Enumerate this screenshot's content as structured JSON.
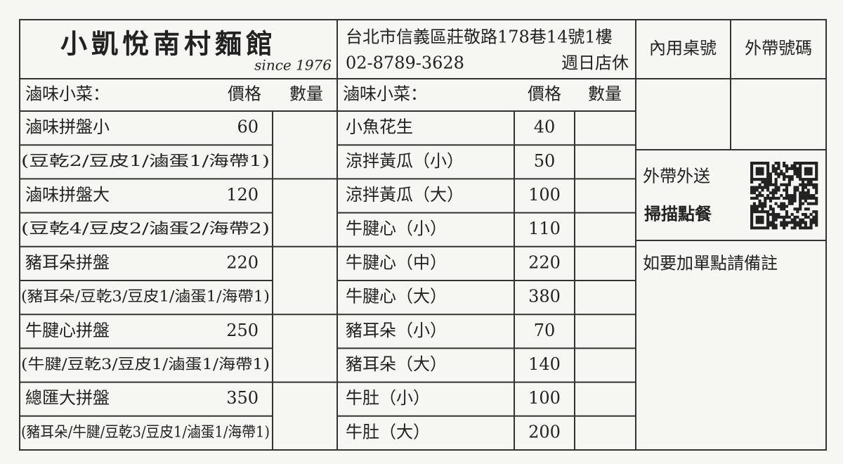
{
  "header": {
    "title": "小凱悅南村麵館",
    "since": "since 1976",
    "address": "台北市信義區莊敬路178巷14號1樓",
    "phone": "02-8789-3628",
    "closed": "週日店休"
  },
  "boxes": {
    "dine_in": "內用桌號",
    "takeout_number": "外帶號碼",
    "delivery": "外帶外送",
    "scan_order": "掃描點餐",
    "add_note": "如要加單點請備註"
  },
  "left": {
    "heading": "滷味小菜：",
    "price_heading": "價格",
    "qty_heading": "數量",
    "items": [
      {
        "name": "滷味拼盤小",
        "price": 60,
        "detail": "(豆乾2/豆皮1/滷蛋1/海帶1)"
      },
      {
        "name": "滷味拼盤大",
        "price": 120,
        "detail": "(豆乾4/豆皮2/滷蛋2/海帶2)"
      },
      {
        "name": "豬耳朵拼盤",
        "price": 220,
        "detail": "(豬耳朵/豆乾3/豆皮1/滷蛋1/海帶1)"
      },
      {
        "name": "牛腱心拼盤",
        "price": 250,
        "detail": "(牛腱/豆乾3/豆皮1/滷蛋1/海帶1)"
      },
      {
        "name": "總匯大拼盤",
        "price": 350,
        "detail": "(豬耳朵/牛腱/豆乾3/豆皮1/滷蛋1/海帶1)"
      }
    ]
  },
  "right": {
    "heading": "滷味小菜：",
    "price_heading": "價格",
    "qty_heading": "數量",
    "items": [
      {
        "name": "小魚花生",
        "price": 40
      },
      {
        "name": "涼拌黃瓜（小）",
        "price": 50
      },
      {
        "name": "涼拌黃瓜（大）",
        "price": 100
      },
      {
        "name": "牛腱心（小）",
        "price": 110
      },
      {
        "name": "牛腱心（中）",
        "price": 220
      },
      {
        "name": "牛腱心（大）",
        "price": 380
      },
      {
        "name": "豬耳朵（小）",
        "price": 70
      },
      {
        "name": "豬耳朵（大）",
        "price": 140
      },
      {
        "name": "牛肚（小）",
        "price": 100
      },
      {
        "name": "牛肚（大）",
        "price": 200
      }
    ]
  }
}
